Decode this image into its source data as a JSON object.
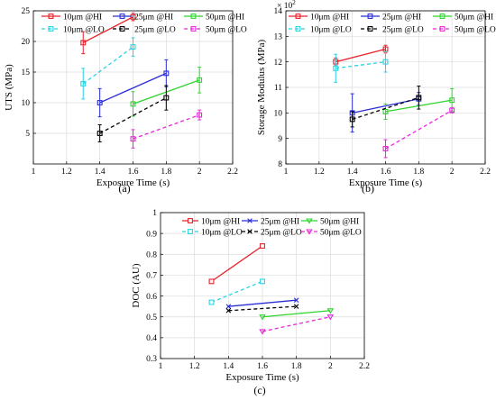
{
  "chart_data": [
    {
      "type": "line",
      "caption": "(a)",
      "xlabel": "Exposure Time (s)",
      "ylabel": "UTS (MPa)",
      "xlim": [
        1,
        2.2
      ],
      "ylim": [
        0,
        25
      ],
      "xticks": [
        "1",
        "1.2",
        "1.4",
        "1.6",
        "1.8",
        "2",
        "2.2"
      ],
      "yticks": [
        "5",
        "10",
        "15",
        "20",
        "25"
      ],
      "grid": true,
      "legend_position": "top-left",
      "series": [
        {
          "name": "10μm @HI",
          "color": "#e8212a",
          "dashed": false,
          "marker": "square",
          "x": [
            1.3,
            1.6
          ],
          "y": [
            19.8,
            24.0
          ],
          "err": [
            1.8,
            0.6
          ]
        },
        {
          "name": "25μm @HI",
          "color": "#2b2fd6",
          "dashed": false,
          "marker": "square",
          "x": [
            1.4,
            1.8
          ],
          "y": [
            10.0,
            14.8
          ],
          "err": [
            2.3,
            2.2
          ]
        },
        {
          "name": "50μm @HI",
          "color": "#2fd42f",
          "dashed": false,
          "marker": "square",
          "x": [
            1.6,
            2.0
          ],
          "y": [
            9.8,
            13.7
          ],
          "err": [
            2.0,
            2.1
          ]
        },
        {
          "name": "10μm @LO",
          "color": "#27d3e3",
          "dashed": true,
          "marker": "square",
          "x": [
            1.3,
            1.6
          ],
          "y": [
            13.1,
            19.1
          ],
          "err": [
            2.5,
            1.5
          ]
        },
        {
          "name": "25μm @LO",
          "color": "#000000",
          "dashed": true,
          "marker": "square",
          "x": [
            1.4,
            1.8
          ],
          "y": [
            5.0,
            10.8
          ],
          "err": [
            1.4,
            2.0
          ]
        },
        {
          "name": "50μm @LO",
          "color": "#e529d8",
          "dashed": true,
          "marker": "square",
          "x": [
            1.6,
            2.0
          ],
          "y": [
            4.1,
            8.0
          ],
          "err": [
            1.5,
            0.8
          ]
        }
      ]
    },
    {
      "type": "line",
      "caption": "(b)",
      "xlabel": "Exposure Time (s)",
      "ylabel": "Storage Modulus (MPa)",
      "y_multiplier": "× 10",
      "y_multiplier_exp": "2",
      "xlim": [
        1,
        2.2
      ],
      "ylim": [
        8,
        14
      ],
      "xticks": [
        "1",
        "1.2",
        "1.4",
        "1.6",
        "1.8",
        "2",
        "2.2"
      ],
      "yticks": [
        "8",
        "9",
        "10",
        "11",
        "12",
        "13",
        "14"
      ],
      "grid": true,
      "legend_position": "top-left",
      "series": [
        {
          "name": "10μm @HI",
          "color": "#e8212a",
          "dashed": false,
          "marker": "square",
          "x": [
            1.3,
            1.6
          ],
          "y": [
            12.0,
            12.5
          ],
          "err": [
            0.15,
            0.15
          ]
        },
        {
          "name": "25μm @HI",
          "color": "#2b2fd6",
          "dashed": false,
          "marker": "square",
          "x": [
            1.4,
            1.8
          ],
          "y": [
            10.0,
            10.55
          ],
          "err": [
            0.75,
            0.25
          ]
        },
        {
          "name": "50μm @HI",
          "color": "#2fd42f",
          "dashed": false,
          "marker": "square",
          "x": [
            1.6,
            2.0
          ],
          "y": [
            10.05,
            10.5
          ],
          "err": [
            0.3,
            0.45
          ]
        },
        {
          "name": "10μm @LO",
          "color": "#27d3e3",
          "dashed": true,
          "marker": "square",
          "x": [
            1.3,
            1.6
          ],
          "y": [
            11.75,
            12.0
          ],
          "err": [
            0.55,
            0.4
          ]
        },
        {
          "name": "25μm @LO",
          "color": "#000000",
          "dashed": true,
          "marker": "square",
          "x": [
            1.4,
            1.8
          ],
          "y": [
            9.75,
            10.6
          ],
          "err": [
            0.3,
            0.45
          ]
        },
        {
          "name": "50μm @LO",
          "color": "#e529d8",
          "dashed": true,
          "marker": "square",
          "x": [
            1.6,
            2.0
          ],
          "y": [
            8.6,
            10.1
          ],
          "err": [
            0.35,
            0.1
          ]
        }
      ]
    },
    {
      "type": "line",
      "caption": "(c)",
      "xlabel": "Exposure Time (s)",
      "ylabel": "DOC (AU)",
      "xlim": [
        1,
        2.2
      ],
      "ylim": [
        0.3,
        1
      ],
      "xticks": [
        "1",
        "1.2",
        "1.4",
        "1.6",
        "1.8",
        "2",
        "2.2"
      ],
      "yticks": [
        "0.3",
        "0.4",
        "0.5",
        "0.6",
        "0.7",
        "0.8",
        "0.9",
        "1"
      ],
      "grid": true,
      "legend_position": "top",
      "series": [
        {
          "name": "10μm @HI",
          "color": "#e8212a",
          "dashed": false,
          "marker": "square-open",
          "x": [
            1.3,
            1.6
          ],
          "y": [
            0.67,
            0.84
          ]
        },
        {
          "name": "25μm @HI",
          "color": "#2b2fd6",
          "dashed": false,
          "marker": "x",
          "x": [
            1.4,
            1.8
          ],
          "y": [
            0.55,
            0.58
          ]
        },
        {
          "name": "50μm @HI",
          "color": "#2fd42f",
          "dashed": false,
          "marker": "triangle-down",
          "x": [
            1.6,
            2.0
          ],
          "y": [
            0.5,
            0.53
          ]
        },
        {
          "name": "10μm @LO",
          "color": "#27d3e3",
          "dashed": true,
          "marker": "square-open",
          "x": [
            1.3,
            1.6
          ],
          "y": [
            0.57,
            0.67
          ]
        },
        {
          "name": "25μm @LO",
          "color": "#000000",
          "dashed": true,
          "marker": "x",
          "x": [
            1.4,
            1.8
          ],
          "y": [
            0.53,
            0.55
          ]
        },
        {
          "name": "50μm @LO",
          "color": "#e529d8",
          "dashed": true,
          "marker": "triangle-down",
          "x": [
            1.6,
            2.0
          ],
          "y": [
            0.43,
            0.5
          ]
        }
      ]
    }
  ]
}
